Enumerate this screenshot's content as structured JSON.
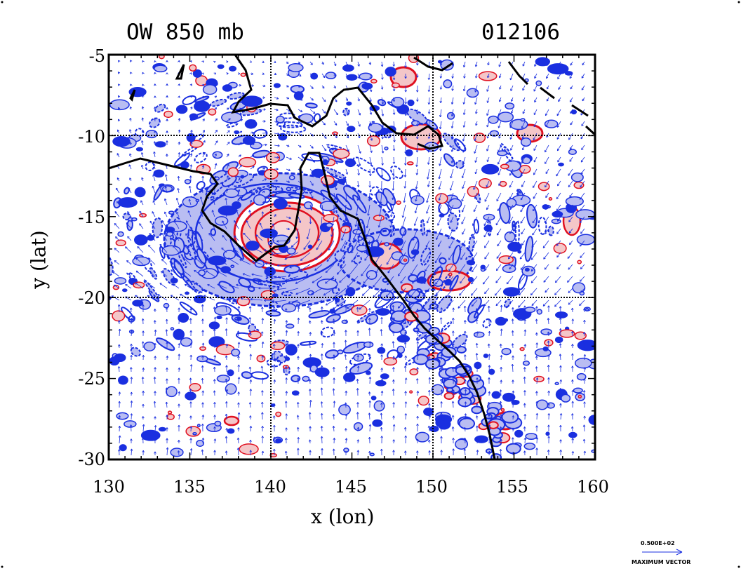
{
  "title_left": "OW 850 mb",
  "title_right": "012106",
  "x_axis": {
    "label": "x (lon)",
    "ticks": [
      "130",
      "135",
      "140",
      "145",
      "150",
      "155",
      "160"
    ]
  },
  "y_axis": {
    "label": "y (lat)",
    "ticks": [
      "-5",
      "-10",
      "-15",
      "-20",
      "-25",
      "-30"
    ]
  },
  "legend": {
    "value": "0.500E+02",
    "label": "MAXIMUM VECTOR"
  },
  "colors": {
    "contour_negative": "#1a2fe0",
    "fill_negative": "#b9bdf2",
    "contour_positive": "#e01020",
    "fill_positive": "#f4c6c8",
    "coastline": "#000000",
    "vectors": "#1a2fe0"
  },
  "chart_data": {
    "type": "map",
    "xlim": [
      130,
      160
    ],
    "ylim": [
      -30,
      -5
    ],
    "gridlines_lon": [
      140,
      150
    ],
    "gridlines_lat": [
      -10,
      -20
    ],
    "cyclone_center": {
      "lon": 141,
      "lat": -16
    }
  }
}
